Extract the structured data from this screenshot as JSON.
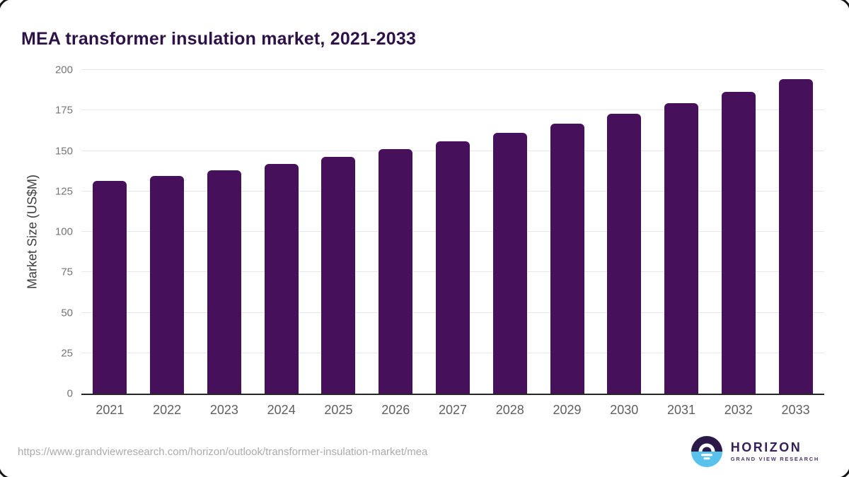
{
  "title": "MEA transformer insulation market, 2021-2033",
  "source_url": "https://www.grandviewresearch.com/horizon/outlook/transformer-insulation-market/mea",
  "logo": {
    "name": "HORIZON",
    "subtitle": "GRAND VIEW RESEARCH"
  },
  "colors": {
    "bar": "#46105a",
    "title": "#2e1247",
    "gridline": "#e7e7e7",
    "axis_line": "#262626",
    "tick_label": "#757575",
    "x_label": "#5f5f5f",
    "url_text": "#ababab",
    "logo_dark": "#2b1a47",
    "logo_blue": "#58c2ec"
  },
  "chart_data": {
    "type": "bar",
    "title": "MEA transformer insulation market, 2021-2033",
    "xlabel": "",
    "ylabel": "Market Size (US$M)",
    "categories": [
      "2021",
      "2022",
      "2023",
      "2024",
      "2025",
      "2026",
      "2027",
      "2028",
      "2029",
      "2030",
      "2031",
      "2032",
      "2033"
    ],
    "values": [
      131.5,
      134.6,
      138.2,
      142.1,
      146.4,
      151.2,
      156.1,
      161.2,
      166.9,
      173.1,
      179.5,
      186.6,
      194.3
    ],
    "ylim": [
      0,
      200
    ],
    "yticks": [
      0,
      25,
      50,
      75,
      100,
      125,
      150,
      175,
      200
    ],
    "grid": true,
    "legend": false,
    "bar_color": "#46105a"
  }
}
